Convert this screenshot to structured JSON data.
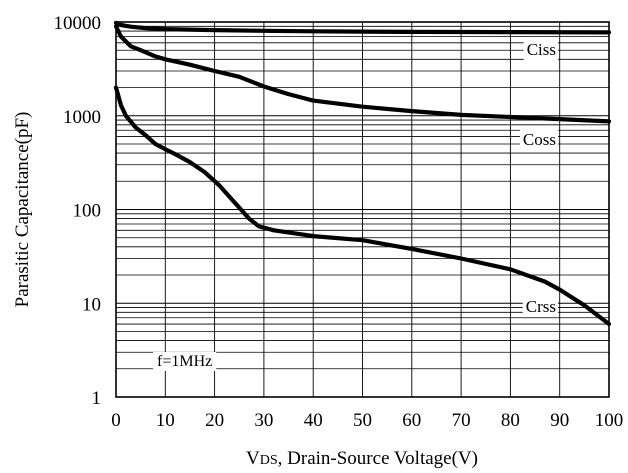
{
  "chart_data": {
    "type": "line",
    "xlabel_main": "V",
    "xlabel_sub": "DS",
    "xlabel_rest": ", Drain-Source Voltage(V)",
    "ylabel": "Parasitic Capacitance(pF)",
    "xlim": [
      0,
      100
    ],
    "ylim": [
      1,
      10000
    ],
    "yscale": "log",
    "grid": true,
    "x_ticks": [
      "0",
      "10",
      "20",
      "30",
      "40",
      "50",
      "60",
      "70",
      "80",
      "90",
      "100"
    ],
    "y_ticks": [
      "1",
      "10",
      "100",
      "1000",
      "10000"
    ],
    "annotation": "f=1MHz",
    "series": [
      {
        "name": "Ciss",
        "points": [
          [
            0,
            9800
          ],
          [
            1,
            9300
          ],
          [
            3,
            8900
          ],
          [
            6,
            8600
          ],
          [
            10,
            8400
          ],
          [
            20,
            8200
          ],
          [
            30,
            8050
          ],
          [
            40,
            7950
          ],
          [
            60,
            7850
          ],
          [
            80,
            7800
          ],
          [
            100,
            7750
          ]
        ]
      },
      {
        "name": "Coss",
        "points": [
          [
            0,
            9000
          ],
          [
            1,
            7000
          ],
          [
            3,
            5500
          ],
          [
            5,
            5000
          ],
          [
            8,
            4300
          ],
          [
            10,
            4000
          ],
          [
            15,
            3500
          ],
          [
            20,
            3000
          ],
          [
            25,
            2600
          ],
          [
            30,
            2050
          ],
          [
            35,
            1700
          ],
          [
            40,
            1450
          ],
          [
            50,
            1250
          ],
          [
            60,
            1120
          ],
          [
            70,
            1020
          ],
          [
            80,
            970
          ],
          [
            90,
            920
          ],
          [
            100,
            870
          ]
        ]
      },
      {
        "name": "Crss",
        "points": [
          [
            0,
            2000
          ],
          [
            1,
            1300
          ],
          [
            2,
            1000
          ],
          [
            4,
            750
          ],
          [
            6,
            620
          ],
          [
            8,
            500
          ],
          [
            10,
            440
          ],
          [
            12,
            390
          ],
          [
            15,
            320
          ],
          [
            18,
            250
          ],
          [
            21,
            180
          ],
          [
            24,
            120
          ],
          [
            27,
            80
          ],
          [
            29,
            66
          ],
          [
            32,
            60
          ],
          [
            40,
            52
          ],
          [
            50,
            47
          ],
          [
            60,
            38
          ],
          [
            70,
            30
          ],
          [
            80,
            23
          ],
          [
            87,
            17
          ],
          [
            90,
            14
          ],
          [
            95,
            9.5
          ],
          [
            100,
            6
          ]
        ]
      }
    ]
  }
}
